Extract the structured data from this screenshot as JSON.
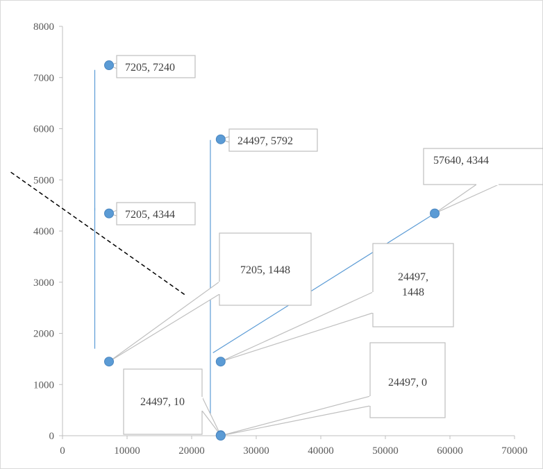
{
  "chart_data": {
    "type": "scatter",
    "title": "",
    "xlabel": "",
    "ylabel": "",
    "xlim": [
      0,
      70000
    ],
    "ylim": [
      0,
      8000
    ],
    "x_ticks": [
      0,
      10000,
      20000,
      30000,
      40000,
      50000,
      60000,
      70000
    ],
    "y_ticks": [
      0,
      1000,
      2000,
      3000,
      4000,
      5000,
      6000,
      7000,
      8000
    ],
    "grid": false,
    "legend": "none",
    "marker_color": "#5b9bd5",
    "line_color": "#5b9bd5",
    "callout_color": "#bfbfbf",
    "dashed_line_color": "#000000",
    "points": [
      {
        "x": 7205,
        "y": 7240,
        "label": "7205, 7240"
      },
      {
        "x": 7205,
        "y": 4344,
        "label": "7205, 4344"
      },
      {
        "x": 7205,
        "y": 1448,
        "label": "7205, 1448"
      },
      {
        "x": 24497,
        "y": 5792,
        "label": "24497, 5792"
      },
      {
        "x": 24497,
        "y": 1448,
        "label": "24497,\n1448"
      },
      {
        "x": 24497,
        "y": 10,
        "label": "24497, 10"
      },
      {
        "x": 24497,
        "y": 0,
        "label": "24497, 0"
      },
      {
        "x": 57640,
        "y": 4344,
        "label": "57640, 4344"
      }
    ],
    "connector_lines": [
      [
        [
          5000,
          1700
        ],
        [
          5000,
          7150
        ]
      ],
      [
        [
          5000,
          4400
        ],
        [
          5000,
          4450
        ]
      ],
      [
        [
          22900,
          300
        ],
        [
          22900,
          5780
        ]
      ],
      [
        [
          23300,
          1620
        ],
        [
          57640,
          4344
        ]
      ]
    ],
    "dashed_line": [
      [
        -8000,
        5150
      ],
      [
        19000,
        2750
      ]
    ]
  }
}
